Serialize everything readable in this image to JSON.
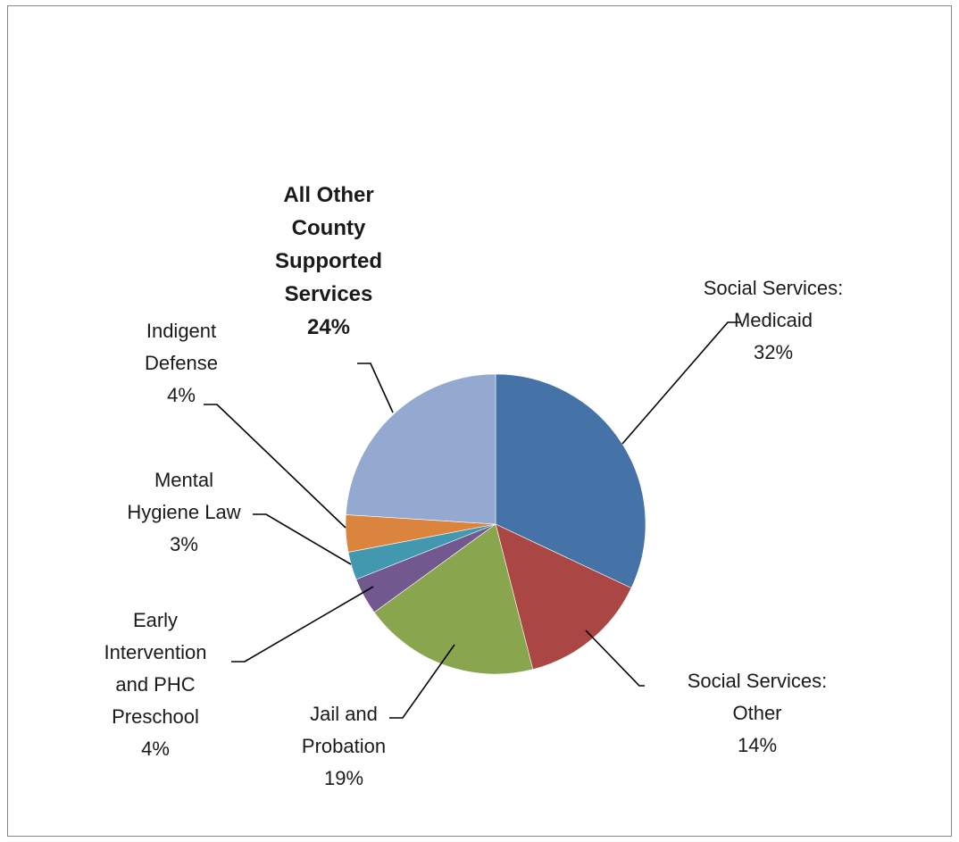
{
  "chart_data": {
    "type": "pie",
    "title": "",
    "start_angle_deg": 0,
    "direction": "clockwise",
    "slices": [
      {
        "label_lines": [
          "Social Services:",
          "Medicaid"
        ],
        "value": 32,
        "value_label": "32%",
        "color": "#4572A7",
        "bold": false
      },
      {
        "label_lines": [
          "Social Services:",
          "Other"
        ],
        "value": 14,
        "value_label": "14%",
        "color": "#AA4643",
        "bold": false
      },
      {
        "label_lines": [
          "Jail and",
          "Probation"
        ],
        "value": 19,
        "value_label": "19%",
        "color": "#89A54E",
        "bold": false
      },
      {
        "label_lines": [
          "Early",
          "Intervention",
          "and PHC",
          "Preschool"
        ],
        "value": 4,
        "value_label": "4%",
        "color": "#71588F",
        "bold": false
      },
      {
        "label_lines": [
          "Mental",
          "Hygiene Law"
        ],
        "value": 3,
        "value_label": "3%",
        "color": "#4198AF",
        "bold": false
      },
      {
        "label_lines": [
          "Indigent",
          "Defense"
        ],
        "value": 4,
        "value_label": "4%",
        "color": "#DB843D",
        "bold": false
      },
      {
        "label_lines": [
          "All Other",
          "County",
          "Supported",
          "Services"
        ],
        "value": 24,
        "value_label": "24%",
        "color": "#93A9CF",
        "bold": true
      }
    ]
  }
}
